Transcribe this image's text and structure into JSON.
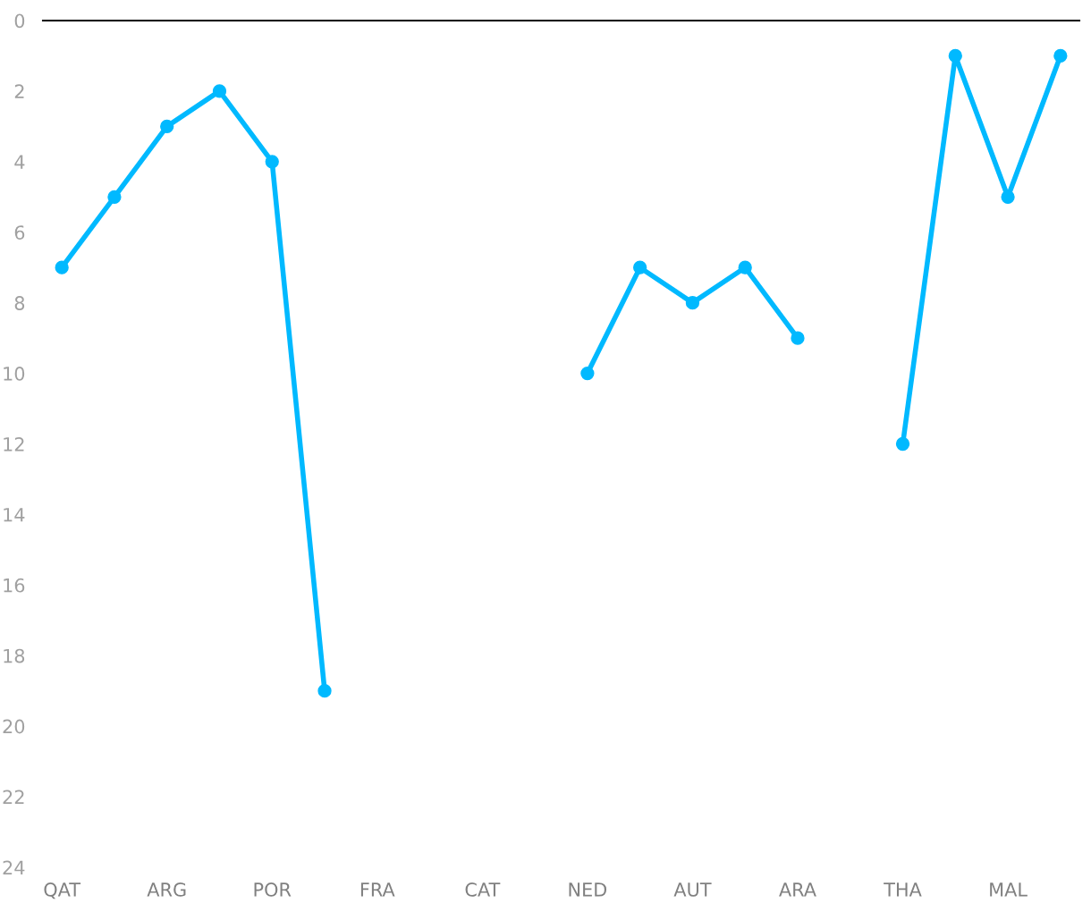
{
  "chart_data": {
    "type": "line",
    "categories": [
      "QAT",
      null,
      "ARG",
      null,
      "POR",
      null,
      "FRA",
      null,
      "CAT",
      null,
      "NED",
      null,
      "AUT",
      null,
      "ARA",
      null,
      "THA",
      null,
      "MAL",
      null
    ],
    "series": [
      {
        "color": "#00b9ff",
        "values": [
          7,
          5,
          3,
          2,
          4,
          19,
          null,
          null,
          null,
          null,
          10,
          7,
          8,
          7,
          9,
          null,
          12,
          1,
          5,
          1
        ]
      }
    ],
    "ylim": [
      24,
      0
    ],
    "yticks": [
      0,
      2,
      4,
      6,
      8,
      10,
      12,
      14,
      16,
      18,
      20,
      22,
      24
    ],
    "grid": false,
    "marker": "circle",
    "line_style": "solid"
  }
}
